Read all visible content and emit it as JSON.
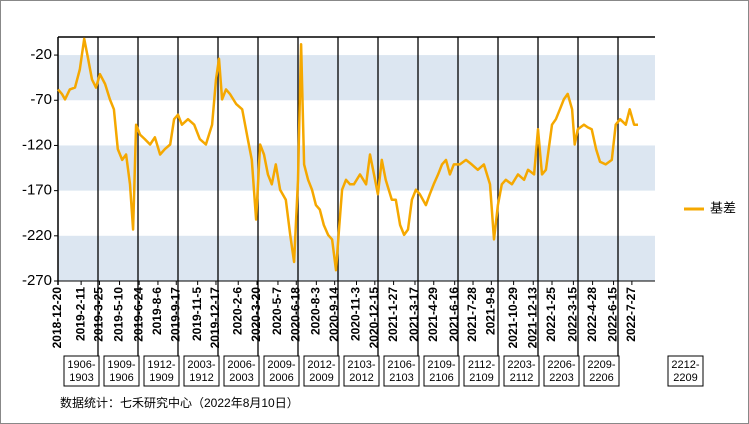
{
  "chart_data": {
    "type": "line",
    "x": [
      "2018-12-20",
      "2018-12-29",
      "2019-1-5",
      "2019-1-16",
      "2019-1-28",
      "2019-2-8",
      "2019-2-18",
      "2019-2-27",
      "2019-3-8",
      "2019-3-17",
      "2019-3-26",
      "2019-4-7",
      "2019-4-18",
      "2019-4-27",
      "2019-5-6",
      "2019-5-16",
      "2019-5-25",
      "2019-6-3",
      "2019-6-10",
      "2019-6-17",
      "2019-6-26",
      "2019-7-7",
      "2019-7-19",
      "2019-7-30",
      "2019-8-11",
      "2019-8-22",
      "2019-9-3",
      "2019-9-12",
      "2019-9-21",
      "2019-9-30",
      "2019-10-14",
      "2019-10-28",
      "2019-11-10",
      "2019-11-24",
      "2019-12-8",
      "2019-12-17",
      "2019-12-24",
      "2019-12-31",
      "2020-1-9",
      "2020-1-18",
      "2020-2-1",
      "2020-2-15",
      "2020-2-28",
      "2020-3-8",
      "2020-3-18",
      "2020-3-27",
      "2020-4-5",
      "2020-4-14",
      "2020-4-23",
      "2020-5-2",
      "2020-5-12",
      "2020-5-25",
      "2020-6-4",
      "2020-6-13",
      "2020-6-22",
      "2020-6-29",
      "2020-7-6",
      "2020-7-15",
      "2020-7-24",
      "2020-8-2",
      "2020-8-11",
      "2020-8-20",
      "2020-8-30",
      "2020-9-8",
      "2020-9-17",
      "2020-9-24",
      "2020-10-1",
      "2020-10-10",
      "2020-10-19",
      "2020-10-28",
      "2020-11-11",
      "2020-11-25",
      "2020-12-4",
      "2020-12-13",
      "2020-12-22",
      "2020-12-31",
      "2021-1-9",
      "2021-1-23",
      "2021-2-1",
      "2021-2-11",
      "2021-2-20",
      "2021-3-1",
      "2021-3-10",
      "2021-3-19",
      "2021-3-28",
      "2021-4-11",
      "2021-4-20",
      "2021-4-29",
      "2021-5-9",
      "2021-5-18",
      "2021-5-27",
      "2021-6-5",
      "2021-6-14",
      "2021-6-28",
      "2021-7-12",
      "2021-7-25",
      "2021-8-8",
      "2021-8-22",
      "2021-9-5",
      "2021-9-14",
      "2021-9-23",
      "2021-10-2",
      "2021-10-11",
      "2021-10-25",
      "2021-11-8",
      "2021-11-22",
      "2021-12-1",
      "2021-12-15",
      "2021-12-24",
      "2022-1-2",
      "2022-1-11",
      "2022-1-25",
      "2022-2-3",
      "2022-2-12",
      "2022-2-21",
      "2022-3-2",
      "2022-3-12",
      "2022-3-18",
      "2022-3-25",
      "2022-4-8",
      "2022-4-17",
      "2022-4-26",
      "2022-5-6",
      "2022-5-15",
      "2022-5-28",
      "2022-6-11",
      "2022-6-20",
      "2022-6-30",
      "2022-7-13",
      "2022-7-22",
      "2022-8-1",
      "2022-8-10"
    ],
    "series": [
      {
        "name": "基差",
        "color": "#f5a800",
        "values": [
          -58,
          -63,
          -69,
          -58,
          -56,
          -36,
          -2,
          -24,
          -47,
          -56,
          -41,
          -52,
          -69,
          -80,
          -124,
          -136,
          -130,
          -163,
          -213,
          -97,
          -108,
          -113,
          -119,
          -111,
          -130,
          -124,
          -119,
          -91,
          -86,
          -97,
          -91,
          -97,
          -113,
          -119,
          -97,
          -47,
          -24,
          -69,
          -58,
          -63,
          -74,
          -80,
          -113,
          -136,
          -202,
          -119,
          -130,
          -152,
          -163,
          -141,
          -169,
          -180,
          -219,
          -249,
          -158,
          -8,
          -141,
          -158,
          -169,
          -186,
          -191,
          -208,
          -219,
          -224,
          -258,
          -213,
          -169,
          -158,
          -163,
          -163,
          -152,
          -163,
          -130,
          -152,
          -174,
          -136,
          -158,
          -180,
          -180,
          -208,
          -219,
          -213,
          -180,
          -169,
          -174,
          -186,
          -174,
          -163,
          -152,
          -141,
          -136,
          -152,
          -141,
          -141,
          -136,
          -141,
          -147,
          -141,
          -163,
          -224,
          -186,
          -163,
          -158,
          -163,
          -152,
          -158,
          -147,
          -152,
          -102,
          -152,
          -147,
          -97,
          -91,
          -80,
          -69,
          -63,
          -80,
          -119,
          -102,
          -97,
          -100,
          -102,
          -124,
          -138,
          -141,
          -136,
          -97,
          -91,
          -97,
          -80,
          -97,
          -97
        ]
      }
    ],
    "xlim": [
      "2018-12-20",
      "2022-9-18"
    ],
    "xticks": [
      "2018-12-20",
      "2019-2-11",
      "2019-3-25",
      "2019-5-10",
      "2019-6-24",
      "2019-8-6",
      "2019-9-17",
      "2019-11-5",
      "2019-12-17",
      "2020-2-6",
      "2020-3-20",
      "2020-5-7",
      "2020-6-18",
      "2020-8-3",
      "2020-9-14",
      "2020-11-3",
      "2020-12-15",
      "2021-1-27",
      "2021-3-17",
      "2021-4-29",
      "2021-6-16",
      "2021-7-28",
      "2021-9-8",
      "2021-10-29",
      "2021-12-13",
      "2022-1-25",
      "2022-3-15",
      "2022-4-28",
      "2022-6-15",
      "2022-7-27"
    ],
    "ylim": [
      -270,
      0
    ],
    "yticks": [
      -20,
      -70,
      -120,
      -170,
      -220,
      -270
    ],
    "bands": true,
    "legend": "right",
    "contracts": [
      "1906-1903",
      "1909-1906",
      "1912-1909",
      "2003-1912",
      "2006-2003",
      "2009-2006",
      "2012-2009",
      "2103-2012",
      "2106-2103",
      "2109-2106",
      "2112-2109",
      "2203-2112",
      "2206-2203",
      "2209-2206",
      "2212-2209"
    ],
    "note": "数据统计：七禾研究中心（2022年8月10日）"
  }
}
